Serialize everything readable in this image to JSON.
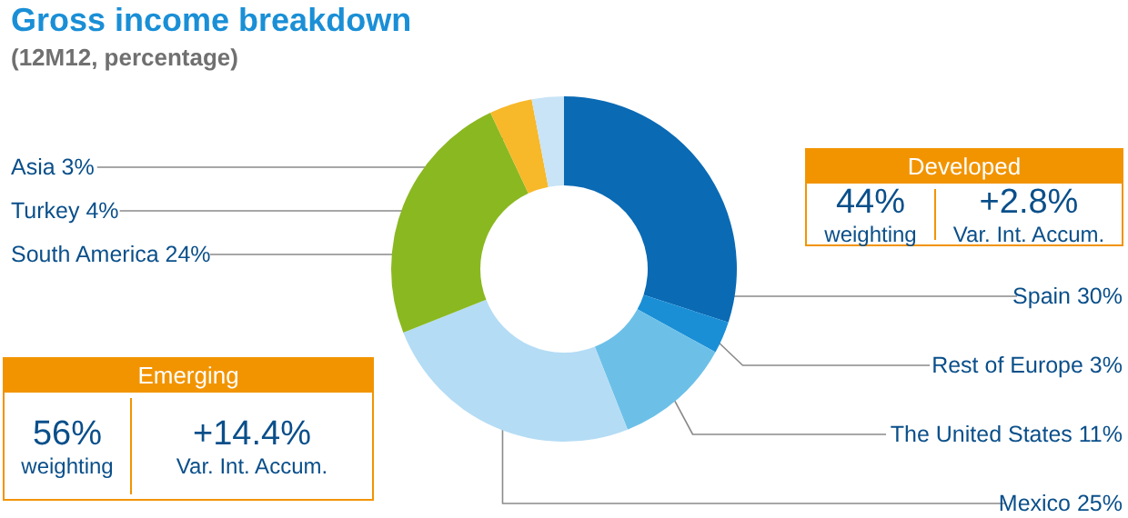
{
  "chart_data": {
    "type": "donut",
    "title": "Gross income breakdown",
    "subtitle": "(12M12, percentage)",
    "categories": [
      "Spain",
      "Rest of Europe",
      "The United States",
      "Mexico",
      "South America",
      "Turkey",
      "Asia"
    ],
    "values": [
      30,
      3,
      11,
      25,
      24,
      4,
      3
    ],
    "value_labels": [
      "30%",
      "3%",
      "11%",
      "25%",
      "24%",
      "4%",
      "3%"
    ],
    "colors": [
      "#0a6ab4",
      "#1a8fd6",
      "#6cc0e8",
      "#b4dcf5",
      "#8ab820",
      "#f7b82a",
      "#c8e4f6"
    ],
    "annotations": [
      "Developed",
      "44%",
      "weighting",
      "+2.8%",
      "Var. Int. Accum.",
      "Emerging",
      "56%",
      "weighting",
      "+14.4%",
      "Var. Int. Accum."
    ]
  }
}
